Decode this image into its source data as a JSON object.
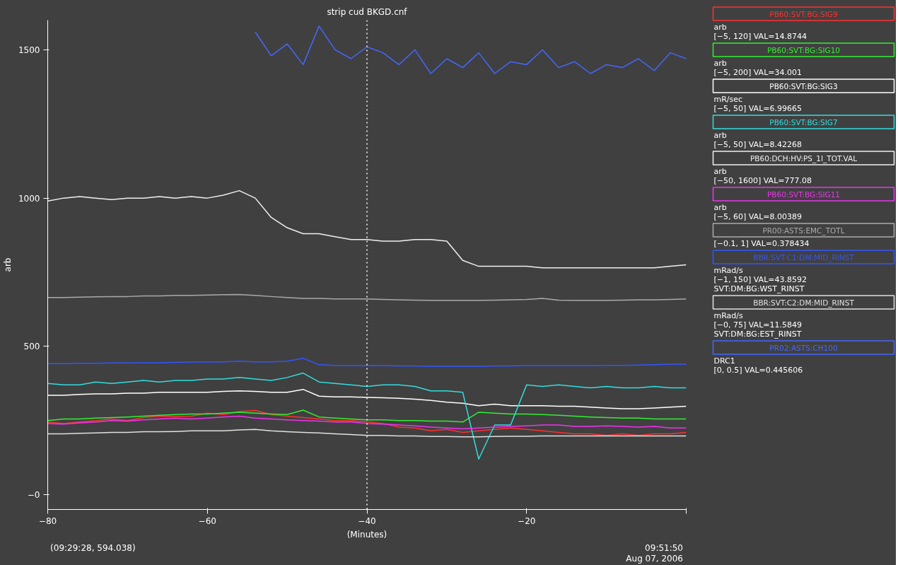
{
  "chart_data": {
    "type": "line",
    "title": "strip cud BKGD.cnf",
    "xlabel": "(Minutes)",
    "ylabel": "arb",
    "x": [
      -80,
      -78,
      -76,
      -74,
      -72,
      -70,
      -68,
      -66,
      -64,
      -62,
      -60,
      -58,
      -56,
      -54,
      -52,
      -50,
      -48,
      -46,
      -44,
      -42,
      -40,
      -38,
      -36,
      -34,
      -32,
      -30,
      -28,
      -26,
      -24,
      -22,
      -20,
      -18,
      -16,
      -14,
      -12,
      -10,
      -8,
      -6,
      -4,
      -2,
      0
    ],
    "xlim": [
      -80,
      0
    ],
    "xticks": [
      -80,
      -60,
      -40,
      -20,
      {
        "value": 0,
        "label": null
      }
    ],
    "ylim": [
      -50,
      1600
    ],
    "yticks": [
      {
        "value": 0,
        "label": "−0"
      },
      500,
      1000,
      1500
    ],
    "grid": false,
    "legend": "right",
    "marker": "none",
    "line_style": "solid",
    "ref_lines": [
      {
        "axis": "x",
        "value": -40,
        "color": "#ffffff",
        "line_style": "dotted"
      }
    ],
    "series": [
      {
        "name": "PB60:SVT:BG:SIG9",
        "color": "#ff3030",
        "values": [
          245,
          240,
          245,
          250,
          255,
          250,
          260,
          265,
          264,
          265,
          275,
          270,
          280,
          284,
          270,
          265,
          260,
          255,
          250,
          250,
          245,
          240,
          228,
          225,
          215,
          220,
          210,
          215,
          220,
          225,
          220,
          215,
          210,
          205,
          205,
          200,
          205,
          200,
          205,
          205,
          210
        ]
      },
      {
        "name": "PB60:SVT:BG:SIG10",
        "color": "#33ee33",
        "values": [
          250,
          255,
          255,
          258,
          260,
          262,
          265,
          268,
          270,
          272,
          272,
          275,
          278,
          275,
          272,
          270,
          285,
          262,
          258,
          255,
          252,
          252,
          250,
          250,
          248,
          248,
          245,
          278,
          275,
          272,
          272,
          270,
          268,
          265,
          262,
          260,
          258,
          258,
          255,
          255,
          255
        ]
      },
      {
        "name": "PB60:SVT:BG:SIG3",
        "color": "#ffffff",
        "values": [
          335,
          335,
          338,
          340,
          340,
          342,
          342,
          345,
          345,
          345,
          345,
          348,
          350,
          348,
          345,
          345,
          355,
          332,
          330,
          330,
          328,
          327,
          325,
          322,
          318,
          312,
          308,
          300,
          305,
          300,
          300,
          300,
          298,
          298,
          295,
          292,
          290,
          290,
          292,
          295,
          298
        ]
      },
      {
        "name": "PB60:SVT:BG:SIG7",
        "color": "#33dddd",
        "values": [
          375,
          370,
          370,
          380,
          375,
          380,
          385,
          380,
          385,
          385,
          390,
          390,
          395,
          390,
          385,
          395,
          410,
          380,
          375,
          370,
          365,
          370,
          370,
          365,
          350,
          350,
          345,
          120,
          235,
          235,
          370,
          365,
          370,
          365,
          360,
          365,
          360,
          360,
          365,
          360,
          360
        ]
      },
      {
        "name": "PB60:DCH:HV:PS_1I_TOT.VAL",
        "color": "#f0f0f0",
        "values": [
          990,
          1000,
          1005,
          1000,
          995,
          1000,
          1000,
          1005,
          1000,
          1005,
          1000,
          1010,
          1025,
          1000,
          935,
          900,
          880,
          880,
          870,
          860,
          860,
          855,
          855,
          860,
          860,
          855,
          790,
          770,
          770,
          770,
          770,
          765,
          765,
          765,
          765,
          765,
          765,
          765,
          765,
          770,
          775
        ]
      },
      {
        "name": "PB60:SVT:BG:SIG11",
        "color": "#ee33ee",
        "values": [
          240,
          238,
          242,
          245,
          250,
          248,
          252,
          255,
          258,
          255,
          258,
          262,
          265,
          258,
          255,
          252,
          250,
          248,
          245,
          245,
          240,
          238,
          235,
          232,
          228,
          225,
          222,
          225,
          228,
          230,
          232,
          235,
          235,
          230,
          230,
          232,
          230,
          228,
          230,
          225,
          225
        ]
      },
      {
        "name": "PR00:ASTS:EMC_TOTL",
        "color": "#aaaaaa",
        "values": [
          665,
          665,
          666,
          667,
          668,
          668,
          670,
          670,
          672,
          672,
          673,
          674,
          675,
          672,
          668,
          665,
          662,
          662,
          660,
          660,
          660,
          658,
          657,
          656,
          655,
          655,
          655,
          655,
          656,
          657,
          658,
          662,
          656,
          655,
          655,
          655,
          656,
          657,
          657,
          658,
          660
        ]
      },
      {
        "name": "BBR:SVT:C1:DM:MID_RINST",
        "color": "#3355ff",
        "values": [
          442,
          442,
          443,
          443,
          444,
          444,
          445,
          445,
          446,
          447,
          447,
          448,
          450,
          448,
          448,
          450,
          460,
          438,
          436,
          435,
          435,
          435,
          434,
          434,
          433,
          433,
          433,
          433,
          434,
          434,
          435,
          435,
          435,
          435,
          435,
          436,
          436,
          437,
          438,
          440,
          440
        ]
      },
      {
        "name": "BBR:SVT:C2:DM:MID_RINST",
        "color": "#e0e0e0",
        "values": [
          205,
          205,
          207,
          208,
          210,
          210,
          212,
          212,
          213,
          215,
          215,
          215,
          218,
          220,
          215,
          212,
          210,
          208,
          205,
          203,
          200,
          200,
          198,
          198,
          196,
          196,
          195,
          195,
          196,
          197,
          197,
          198,
          198,
          198,
          198,
          198,
          198,
          198,
          198,
          198,
          198
        ]
      },
      {
        "name": "PR02:ASTS:CH100",
        "color": "#4466ff",
        "values": [
          null,
          null,
          null,
          null,
          null,
          null,
          null,
          null,
          null,
          null,
          null,
          null,
          null,
          1560,
          1480,
          1520,
          1450,
          1580,
          1500,
          1470,
          1510,
          1490,
          1450,
          1500,
          1420,
          1470,
          1440,
          1490,
          1420,
          1460,
          1450,
          1500,
          1440,
          1460,
          1420,
          1450,
          1440,
          1470,
          1430,
          1490,
          1470
        ]
      }
    ],
    "annotations": [
      "(09:29:28, 594.038)",
      "09:51:50",
      "Aug 07, 2006",
      "arb\n[−5, 120] VAL=14.8744",
      "arb\n[−5, 200] VAL=34.001",
      "mR/sec\n[−5, 50] VAL=6.99665",
      "arb\n[−5, 50] VAL=8.42268",
      "arb\n[−50, 1600] VAL=777.08",
      "arb\n[−5, 60] VAL=8.00389",
      "[−0.1, 1] VAL=0.378434",
      "mRad/s\n[−1, 150] VAL=43.8592\nSVT:DM:BG:WST_RINST",
      "mRad/s\n[−0, 75] VAL=11.5849\nSVT:DM:BG:EST_RINST",
      "DRC1\n[0, 0.5] VAL=0.445606"
    ]
  }
}
